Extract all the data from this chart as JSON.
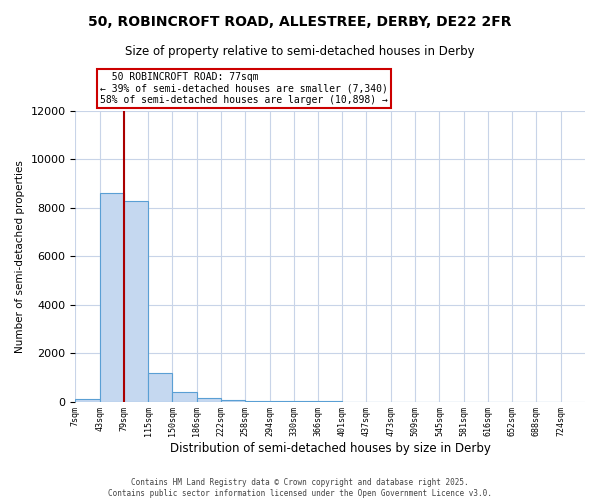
{
  "title": "50, ROBINCROFT ROAD, ALLESTREE, DERBY, DE22 2FR",
  "subtitle": "Size of property relative to semi-detached houses in Derby",
  "xlabel": "Distribution of semi-detached houses by size in Derby",
  "ylabel": "Number of semi-detached properties",
  "footer_line1": "Contains HM Land Registry data © Crown copyright and database right 2025.",
  "footer_line2": "Contains public sector information licensed under the Open Government Licence v3.0.",
  "property_size": 77,
  "pct_smaller": 39,
  "pct_larger": 58,
  "n_smaller": 7340,
  "n_larger": 10898,
  "annotation_label": "50 ROBINCROFT ROAD: 77sqm",
  "bin_labels": [
    "7sqm",
    "43sqm",
    "79sqm",
    "115sqm",
    "150sqm",
    "186sqm",
    "222sqm",
    "258sqm",
    "294sqm",
    "330sqm",
    "366sqm",
    "401sqm",
    "437sqm",
    "473sqm",
    "509sqm",
    "545sqm",
    "581sqm",
    "616sqm",
    "652sqm",
    "688sqm",
    "724sqm"
  ],
  "bin_edges": [
    7,
    43,
    79,
    115,
    150,
    186,
    222,
    258,
    294,
    330,
    366,
    401,
    437,
    473,
    509,
    545,
    581,
    616,
    652,
    688,
    724
  ],
  "bar_heights": [
    100,
    8600,
    8300,
    1200,
    400,
    150,
    60,
    20,
    10,
    5,
    4,
    3,
    2,
    1,
    1,
    1,
    0,
    0,
    0,
    0
  ],
  "bar_color": "#c5d8f0",
  "bar_edge_color": "#5a9fd4",
  "vline_color": "#aa0000",
  "vline_x": 79,
  "annotation_box_color": "#cc0000",
  "ylim": [
    0,
    12000
  ],
  "yticks": [
    0,
    2000,
    4000,
    6000,
    8000,
    10000,
    12000
  ],
  "background_color": "#ffffff",
  "grid_color": "#c8d4e8",
  "title_fontsize": 10,
  "subtitle_fontsize": 8.5
}
